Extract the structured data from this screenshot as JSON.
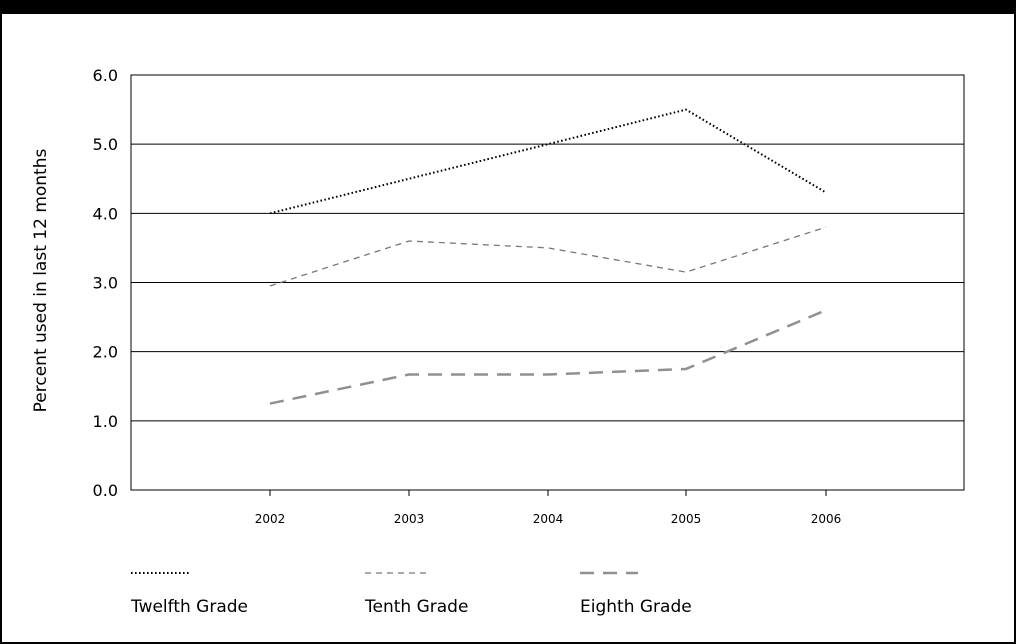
{
  "chart_data": {
    "type": "line",
    "title": "",
    "xlabel": "",
    "ylabel": "Percent used in last 12 months",
    "categories": [
      "2002",
      "2003",
      "2004",
      "2005",
      "2006"
    ],
    "ylim": [
      0,
      6
    ],
    "yticks": [
      "0.0",
      "1.0",
      "2.0",
      "3.0",
      "4.0",
      "5.0",
      "6.0"
    ],
    "grid": "horizontal",
    "legend_position": "bottom",
    "series": [
      {
        "name": "Twelfth Grade",
        "values": [
          4.0,
          4.5,
          5.0,
          5.5,
          4.3
        ],
        "style": "dotted",
        "color": "#000000"
      },
      {
        "name": "Tenth Grade",
        "values": [
          2.95,
          3.6,
          3.5,
          3.15,
          3.8
        ],
        "style": "dashed",
        "color": "#777777"
      },
      {
        "name": "Eighth Grade",
        "values": [
          1.25,
          1.67,
          1.67,
          1.75,
          2.6
        ],
        "style": "long-dashed",
        "color": "#909090"
      }
    ]
  }
}
